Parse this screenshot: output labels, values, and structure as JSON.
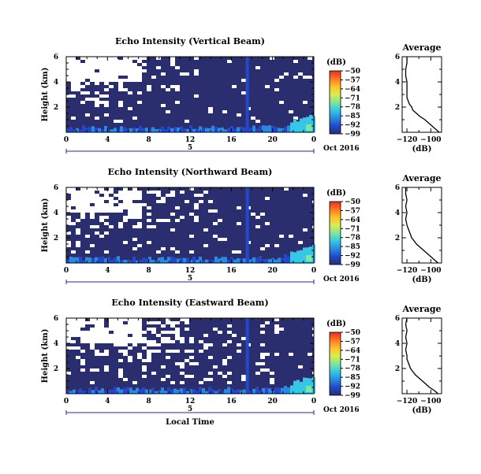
{
  "chart_data": [
    {
      "type": "heatmap",
      "title": "Echo Intensity (Vertical Beam)",
      "ylabel": "Height (km)",
      "xlabel": "",
      "x_tick_labels": [
        "0",
        "4",
        "8",
        "12",
        "16",
        "20",
        "0"
      ],
      "y_tick_labels": [
        "6",
        "4",
        "2"
      ],
      "xlim": [
        0,
        24
      ],
      "ylim": [
        0,
        6
      ],
      "date_label": "5",
      "date_suffix": "Oct 2016",
      "colorbar": {
        "unit": "(dB)",
        "ticks": [
          "-50",
          "-57",
          "-64",
          "-71",
          "-78",
          "-85",
          "-92",
          "-99"
        ],
        "range": [
          -99,
          -50
        ]
      },
      "average": {
        "title": "Average",
        "xlabel": "(dB)",
        "x_tick_labels": [
          "-120",
          "-100"
        ],
        "y_tick_labels": [
          "6",
          "4",
          "2"
        ],
        "xlim": [
          -124,
          -91
        ],
        "heights": [
          0.0,
          0.25,
          0.5,
          0.75,
          1.0,
          1.25,
          1.5,
          1.75,
          2.0,
          2.25,
          2.5,
          2.75,
          3.0,
          3.5,
          4.0,
          4.5,
          5.0,
          5.5,
          6.0
        ],
        "values": [
          -93,
          -96,
          -99,
          -102,
          -105,
          -109,
          -112,
          -115,
          -116,
          -118,
          -119,
          -120,
          -120,
          -120,
          -120,
          -121,
          -121,
          -120,
          -120
        ]
      }
    },
    {
      "type": "heatmap",
      "title": "Echo Intensity (Northward Beam)",
      "ylabel": "Height (km)",
      "xlabel": "",
      "x_tick_labels": [
        "0",
        "4",
        "8",
        "12",
        "16",
        "20",
        "0"
      ],
      "y_tick_labels": [
        "6",
        "4",
        "2"
      ],
      "xlim": [
        0,
        24
      ],
      "ylim": [
        0,
        6
      ],
      "date_label": "5",
      "date_suffix": "Oct 2016",
      "colorbar": {
        "unit": "(dB)",
        "ticks": [
          "-50",
          "-57",
          "-64",
          "-71",
          "-78",
          "-85",
          "-92",
          "-99"
        ],
        "range": [
          -99,
          -50
        ]
      },
      "average": {
        "title": "Average",
        "xlabel": "(dB)",
        "x_tick_labels": [
          "-120",
          "-100"
        ],
        "y_tick_labels": [
          "6",
          "4",
          "2"
        ],
        "xlim": [
          -124,
          -91
        ],
        "heights": [
          0.0,
          0.25,
          0.5,
          0.75,
          1.0,
          1.25,
          1.5,
          1.75,
          2.0,
          2.25,
          2.5,
          2.75,
          3.0,
          3.5,
          4.0,
          4.5,
          5.0,
          5.5,
          6.0
        ],
        "values": [
          -94,
          -97,
          -100,
          -103,
          -106,
          -109,
          -112,
          -114,
          -116,
          -117,
          -118,
          -119,
          -120,
          -121,
          -120,
          -121,
          -120,
          -121,
          -121
        ]
      }
    },
    {
      "type": "heatmap",
      "title": "Echo Intensity (Eastward Beam)",
      "ylabel": "Height (km)",
      "xlabel": "Local Time",
      "x_tick_labels": [
        "0",
        "4",
        "8",
        "12",
        "16",
        "20",
        "0"
      ],
      "y_tick_labels": [
        "6",
        "4",
        "2"
      ],
      "xlim": [
        0,
        24
      ],
      "ylim": [
        0,
        6
      ],
      "date_label": "5",
      "date_suffix": "Oct 2016",
      "colorbar": {
        "unit": "(dB)",
        "ticks": [
          "-50",
          "-57",
          "-64",
          "-71",
          "-78",
          "-85",
          "-92",
          "-99"
        ],
        "range": [
          -99,
          -50
        ]
      },
      "average": {
        "title": "Average",
        "xlabel": "(dB)",
        "x_tick_labels": [
          "-120",
          "-100"
        ],
        "y_tick_labels": [
          "6",
          "4",
          "2"
        ],
        "xlim": [
          -124,
          -91
        ],
        "heights": [
          0.0,
          0.25,
          0.5,
          0.75,
          1.0,
          1.25,
          1.5,
          1.75,
          2.0,
          2.25,
          2.5,
          2.75,
          3.0,
          3.5,
          4.0,
          4.5,
          5.0,
          5.5,
          6.0
        ],
        "values": [
          -94,
          -97,
          -101,
          -104,
          -107,
          -110,
          -113,
          -115,
          -117,
          -118,
          -119,
          -120,
          -120,
          -121,
          -120,
          -121,
          -120,
          -121,
          -120
        ]
      }
    }
  ],
  "colors": {
    "background_fill": "#2a2e6e",
    "colorbar_gradient": [
      "#2a2e6e",
      "#2348c8",
      "#2a8ae0",
      "#36c6e6",
      "#7ee6a0",
      "#d6ee50",
      "#ffc22a",
      "#ff7a20",
      "#ee2a1a"
    ],
    "axis": "#000000",
    "date_bar": "#2424a8"
  }
}
